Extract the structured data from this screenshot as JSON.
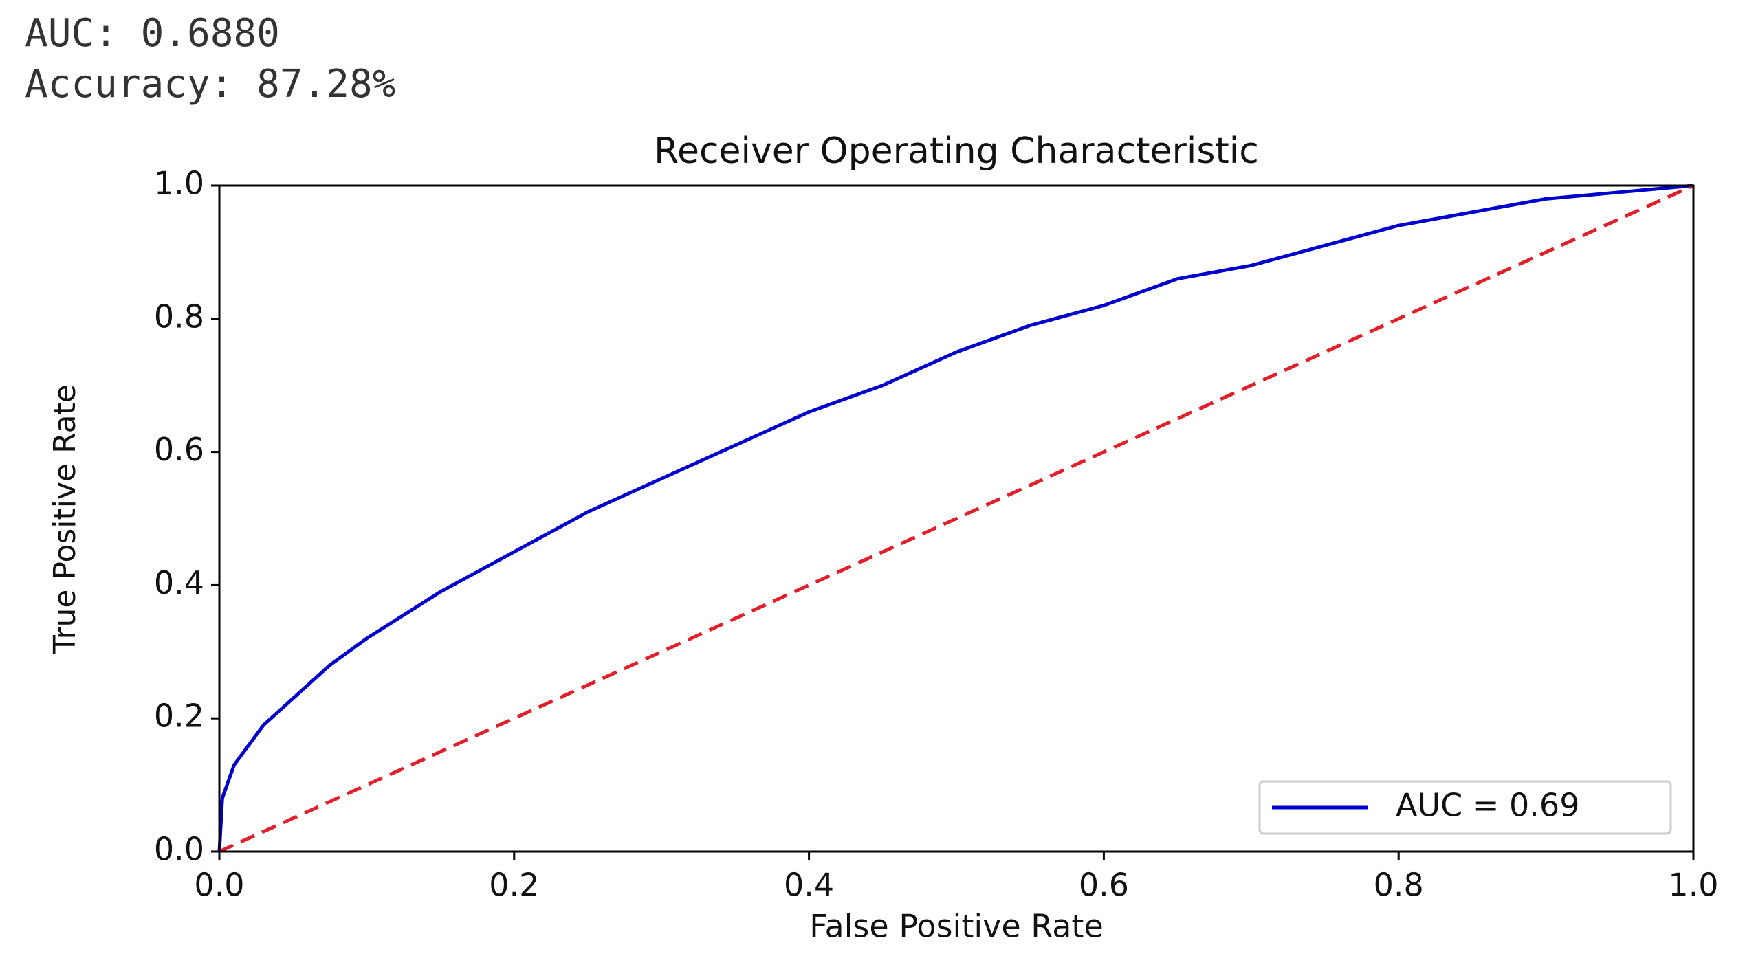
{
  "chart_data": {
    "type": "line",
    "annotations": [
      "AUC: 0.6880",
      "Accuracy: 87.28%"
    ],
    "title": "Receiver Operating Characteristic",
    "x_label": "False Positive Rate",
    "y_label": "True Positive Rate",
    "series": [
      {
        "name": "AUC = 0.69",
        "color": "#0000cc",
        "style": "solid",
        "x": [
          0,
          0.002,
          0.01,
          0.02,
          0.03,
          0.05,
          0.075,
          0.1,
          0.15,
          0.2,
          0.25,
          0.3,
          0.35,
          0.4,
          0.45,
          0.5,
          0.55,
          0.6,
          0.65,
          0.7,
          0.75,
          0.8,
          0.85,
          0.9,
          0.95,
          1.0
        ],
        "values": [
          0,
          0.08,
          0.13,
          0.16,
          0.19,
          0.23,
          0.28,
          0.32,
          0.39,
          0.45,
          0.51,
          0.56,
          0.61,
          0.66,
          0.7,
          0.75,
          0.79,
          0.82,
          0.86,
          0.88,
          0.91,
          0.94,
          0.96,
          0.98,
          0.99,
          1.0
        ]
      },
      {
        "color": "#e0202a",
        "style": "dashed",
        "x": [
          0,
          1
        ],
        "values": [
          0,
          1
        ]
      }
    ],
    "xlim": [
      0,
      1
    ],
    "ylim": [
      0,
      1
    ],
    "xticks": [
      {
        "value": 0,
        "label": "0.0"
      },
      0.2,
      0.4,
      0.6,
      0.8,
      {
        "value": 1,
        "label": "1.0"
      }
    ],
    "yticks": [
      {
        "value": 0,
        "label": "0.0"
      },
      0.2,
      0.4,
      0.6,
      0.8,
      {
        "value": 1,
        "label": "1.0"
      }
    ],
    "grid": false,
    "legend": "lower right"
  }
}
